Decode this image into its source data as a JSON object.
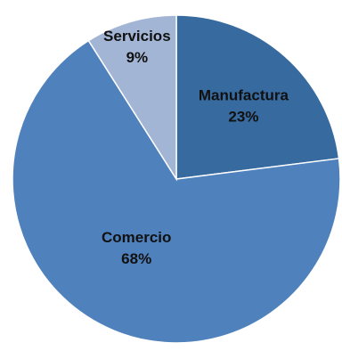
{
  "chart_data": {
    "type": "pie",
    "title": "",
    "slices": [
      {
        "label": "Manufactura",
        "value": 23,
        "value_label": "23%",
        "color": "#376a9e"
      },
      {
        "label": "Comercio",
        "value": 68,
        "value_label": "68%",
        "color": "#4f81bd"
      },
      {
        "label": "Servicios",
        "value": 9,
        "value_label": "9%",
        "color": "#a3b5d4"
      }
    ],
    "start_angle_deg": 0,
    "direction": "clockwise",
    "labels_inside": true,
    "legend": "none",
    "stroke_color": "#ffffff"
  }
}
